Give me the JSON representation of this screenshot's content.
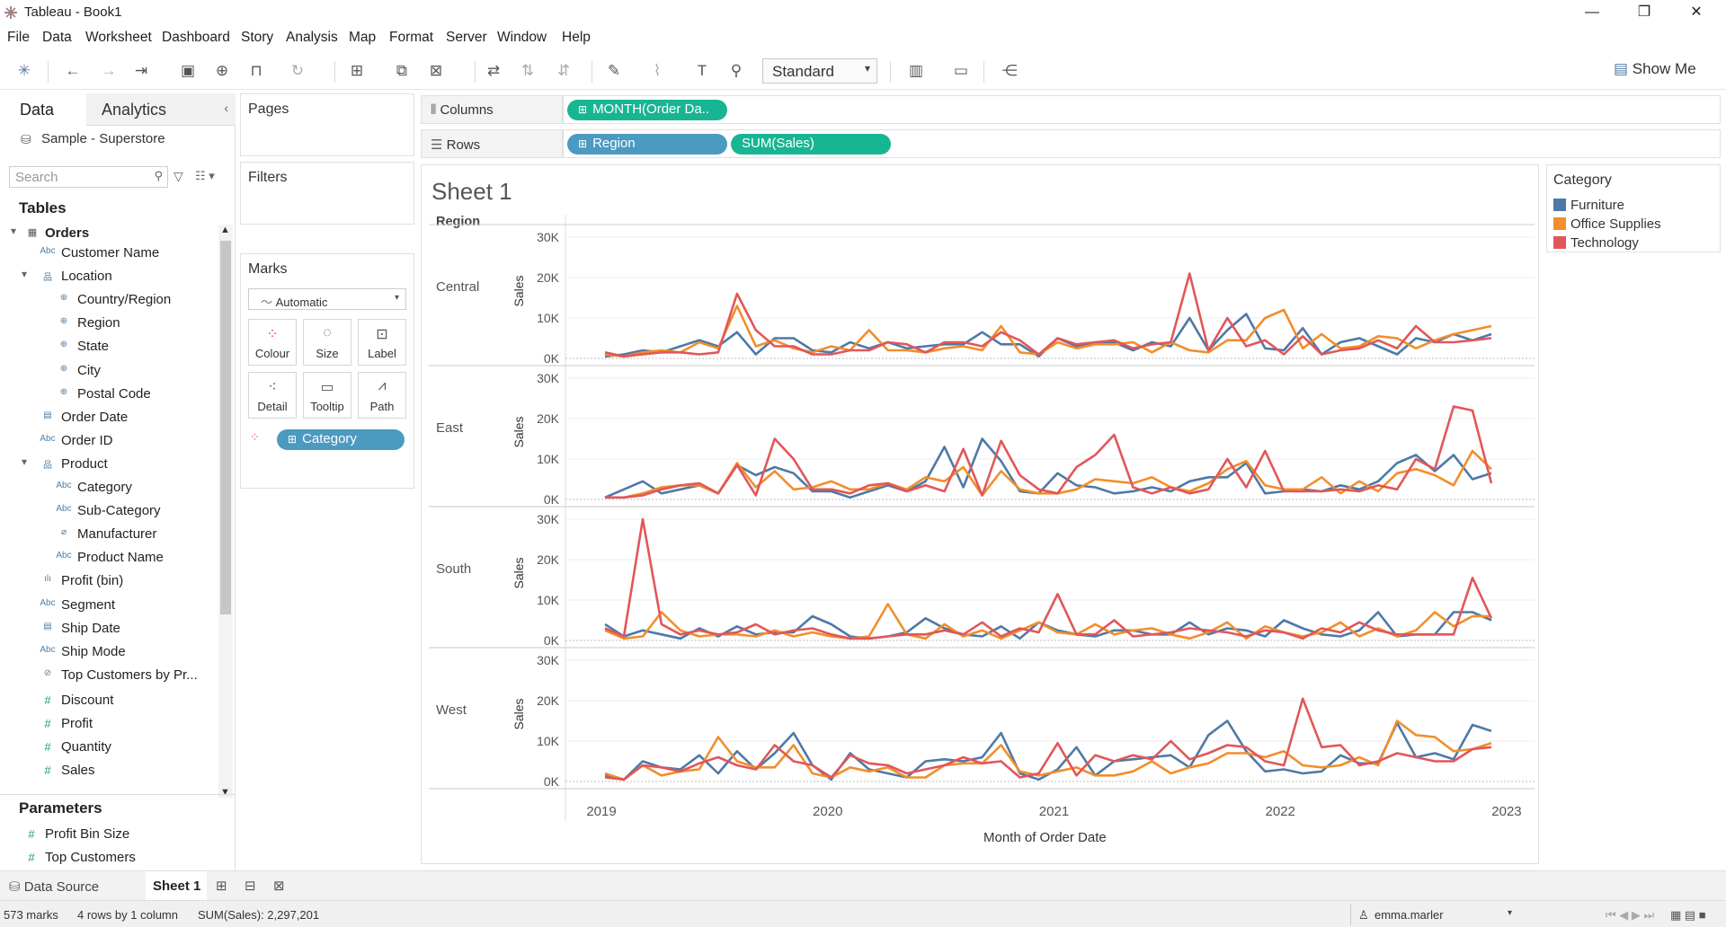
{
  "window": {
    "title": "Tableau - Book1"
  },
  "menu": [
    "File",
    "Data",
    "Worksheet",
    "Dashboard",
    "Story",
    "Analysis",
    "Map",
    "Format",
    "Server",
    "Window",
    "Help"
  ],
  "toolbar": {
    "fit_value": "Standard",
    "show_me": "Show Me"
  },
  "data_pane": {
    "tab_data": "Data",
    "tab_analytics": "Analytics",
    "datasource": "Sample - Superstore",
    "search_placeholder": "Search",
    "tables_heading": "Tables",
    "table_name": "Orders",
    "fields": [
      {
        "label": "Customer Name",
        "type": "Abc",
        "indent": 0
      },
      {
        "label": "Location",
        "type": "hier",
        "indent": 0
      },
      {
        "label": "Country/Region",
        "type": "geo",
        "indent": 1
      },
      {
        "label": "Region",
        "type": "geo",
        "indent": 1
      },
      {
        "label": "State",
        "type": "geo",
        "indent": 1
      },
      {
        "label": "City",
        "type": "geo",
        "indent": 1
      },
      {
        "label": "Postal Code",
        "type": "geo",
        "indent": 1
      },
      {
        "label": "Order Date",
        "type": "date",
        "indent": 0
      },
      {
        "label": "Order ID",
        "type": "Abc",
        "indent": 0
      },
      {
        "label": "Product",
        "type": "hier",
        "indent": 0
      },
      {
        "label": "Category",
        "type": "Abc",
        "indent": 1
      },
      {
        "label": "Sub-Category",
        "type": "Abc",
        "indent": 1
      },
      {
        "label": "Manufacturer",
        "type": "clip",
        "indent": 1
      },
      {
        "label": "Product Name",
        "type": "Abc",
        "indent": 1
      },
      {
        "label": "Profit (bin)",
        "type": "bin",
        "indent": 0
      },
      {
        "label": "Segment",
        "type": "Abc",
        "indent": 0
      },
      {
        "label": "Ship Date",
        "type": "date",
        "indent": 0
      },
      {
        "label": "Ship Mode",
        "type": "Abc",
        "indent": 0
      },
      {
        "label": "Top Customers by Pr...",
        "type": "set",
        "indent": 0
      },
      {
        "label": "Discount",
        "type": "meas",
        "indent": 0
      },
      {
        "label": "Profit",
        "type": "meas",
        "indent": 0
      },
      {
        "label": "Quantity",
        "type": "meas",
        "indent": 0
      },
      {
        "label": "Sales",
        "type": "meas",
        "indent": 0
      }
    ],
    "parameters_heading": "Parameters",
    "parameters": [
      "Profit Bin Size",
      "Top Customers"
    ]
  },
  "cards": {
    "pages": "Pages",
    "filters": "Filters",
    "marks": "Marks",
    "marks_type": "Automatic",
    "mark_buttons": [
      "Colour",
      "Size",
      "Label",
      "Detail",
      "Tooltip",
      "Path"
    ],
    "colour_pill": "Category"
  },
  "shelves": {
    "columns_label": "Columns",
    "rows_label": "Rows",
    "columns_pill": "MONTH(Order Da..",
    "rows_pills": [
      "Region",
      "SUM(Sales)"
    ]
  },
  "sheet": {
    "title": "Sheet 1",
    "region_header": "Region"
  },
  "legend": {
    "title": "Category",
    "items": [
      {
        "name": "Furniture",
        "color": "#4e79a7"
      },
      {
        "name": "Office Supplies",
        "color": "#f28e2b"
      },
      {
        "name": "Technology",
        "color": "#e15759"
      }
    ]
  },
  "chart_data": {
    "type": "line",
    "xlabel": "Month of Order Date",
    "ylabel": "Sales",
    "x_ticks": [
      "2019",
      "2020",
      "2021",
      "2022",
      "2023"
    ],
    "y_ticks": [
      "0K",
      "10K",
      "20K",
      "30K"
    ],
    "ylim": [
      0,
      30000
    ],
    "x": [
      "2019-01",
      "2019-02",
      "2019-03",
      "2019-04",
      "2019-05",
      "2019-06",
      "2019-07",
      "2019-08",
      "2019-09",
      "2019-10",
      "2019-11",
      "2019-12",
      "2020-01",
      "2020-02",
      "2020-03",
      "2020-04",
      "2020-05",
      "2020-06",
      "2020-07",
      "2020-08",
      "2020-09",
      "2020-10",
      "2020-11",
      "2020-12",
      "2021-01",
      "2021-02",
      "2021-03",
      "2021-04",
      "2021-05",
      "2021-06",
      "2021-07",
      "2021-08",
      "2021-09",
      "2021-10",
      "2021-11",
      "2021-12",
      "2022-01",
      "2022-02",
      "2022-03",
      "2022-04",
      "2022-05",
      "2022-06",
      "2022-07",
      "2022-08",
      "2022-09",
      "2022-10",
      "2022-11",
      "2022-12"
    ],
    "panes": [
      {
        "region": "Central",
        "series": [
          {
            "name": "Furniture",
            "values": [
              500,
              1000,
              2000,
              1500,
              3000,
              4500,
              3000,
              6500,
              1000,
              5000,
              5000,
              2000,
              1500,
              4000,
              2500,
              4000,
              2500,
              3000,
              3500,
              3500,
              6500,
              3500,
              3500,
              500,
              5000,
              3000,
              4000,
              4000,
              2000,
              4000,
              3000,
              10000,
              2000,
              7000,
              11000,
              2500,
              2000,
              7500,
              1000,
              4000,
              5000,
              3000,
              1000,
              5000,
              4000,
              6000,
              4500,
              6000
            ]
          },
          {
            "name": "Office Supplies",
            "values": [
              1000,
              500,
              1500,
              2000,
              1500,
              4000,
              2500,
              13000,
              3000,
              4500,
              2500,
              1500,
              3000,
              2000,
              7000,
              2000,
              2000,
              1500,
              2500,
              3000,
              2000,
              8000,
              1500,
              1000,
              4000,
              2500,
              3500,
              3500,
              4000,
              1500,
              4000,
              2000,
              1500,
              4500,
              4500,
              10000,
              12000,
              2500,
              6000,
              2500,
              3000,
              5500,
              5000,
              2500,
              4500,
              6000,
              7000,
              8000
            ]
          },
          {
            "name": "Technology",
            "values": [
              1500,
              500,
              1000,
              1500,
              1500,
              1000,
              1500,
              16000,
              7000,
              3000,
              3000,
              1000,
              1000,
              2000,
              2000,
              4000,
              3500,
              1500,
              4000,
              4000,
              3000,
              6500,
              4500,
              1000,
              5000,
              3500,
              4000,
              4500,
              2500,
              3500,
              4000,
              21000,
              2000,
              10000,
              3000,
              4500,
              1000,
              5500,
              1000,
              2000,
              2500,
              4500,
              2500,
              8000,
              4000,
              4000,
              4500,
              5000
            ]
          }
        ]
      },
      {
        "region": "East",
        "series": [
          {
            "name": "Furniture",
            "values": [
              500,
              2500,
              4500,
              1500,
              2500,
              3500,
              1500,
              8500,
              6000,
              8000,
              6500,
              2000,
              2000,
              500,
              2000,
              3500,
              2000,
              4500,
              13000,
              3000,
              15000,
              9500,
              2000,
              1500,
              6500,
              3500,
              3000,
              1500,
              2000,
              3000,
              2000,
              4500,
              5500,
              5500,
              9000,
              1500,
              2000,
              2500,
              2000,
              3500,
              2500,
              4500,
              9000,
              11000,
              7000,
              11000,
              5000,
              6500
            ]
          },
          {
            "name": "Office Supplies",
            "values": [
              500,
              500,
              1500,
              3000,
              3500,
              3500,
              1500,
              9000,
              3000,
              7000,
              2500,
              3000,
              4500,
              2500,
              2500,
              4000,
              2500,
              5500,
              4500,
              8000,
              1000,
              7000,
              2500,
              1500,
              1500,
              2500,
              5000,
              4500,
              4000,
              5500,
              3000,
              2000,
              4000,
              7500,
              9500,
              3500,
              2500,
              2500,
              5500,
              1500,
              4500,
              2000,
              6500,
              7500,
              6000,
              3500,
              12000,
              7500
            ]
          },
          {
            "name": "Technology",
            "values": [
              500,
              500,
              1000,
              2500,
              3500,
              4000,
              1500,
              8500,
              1000,
              15000,
              10000,
              2500,
              2500,
              1500,
              3500,
              4000,
              2000,
              3500,
              2000,
              12500,
              1000,
              14500,
              6000,
              2500,
              1500,
              8000,
              11000,
              16000,
              3000,
              1500,
              3000,
              1500,
              2500,
              10000,
              3000,
              12000,
              2000,
              2000,
              2000,
              2500,
              2000,
              3500,
              2500,
              10000,
              7500,
              23000,
              22000,
              4000
            ]
          }
        ]
      },
      {
        "region": "South",
        "series": [
          {
            "name": "Furniture",
            "values": [
              4000,
              1000,
              2500,
              1500,
              500,
              3000,
              1000,
              3500,
              1500,
              2000,
              2000,
              6000,
              4000,
              1000,
              500,
              1000,
              2000,
              5500,
              3000,
              1500,
              1000,
              3500,
              500,
              4500,
              2500,
              1500,
              1000,
              2500,
              2500,
              1500,
              1500,
              4500,
              1500,
              3000,
              2500,
              1000,
              5000,
              3000,
              1500,
              1000,
              2500,
              7000,
              1000,
              1500,
              1500,
              7000,
              7000,
              5000
            ]
          },
          {
            "name": "Office Supplies",
            "values": [
              2500,
              500,
              1000,
              7000,
              2500,
              1000,
              1500,
              1500,
              1000,
              2500,
              1000,
              2000,
              1000,
              500,
              1000,
              9000,
              1500,
              500,
              4000,
              1000,
              2500,
              500,
              2500,
              4500,
              2000,
              1500,
              4000,
              1500,
              2500,
              3000,
              1500,
              500,
              2000,
              4500,
              500,
              3500,
              2000,
              1000,
              2000,
              4500,
              1000,
              3000,
              1000,
              2500,
              7000,
              3500,
              6000,
              6000
            ]
          },
          {
            "name": "Technology",
            "values": [
              3000,
              1000,
              30000,
              4000,
              1500,
              2500,
              1500,
              2000,
              4000,
              1500,
              2500,
              3000,
              1500,
              500,
              500,
              1000,
              1500,
              1500,
              2500,
              1500,
              4500,
              1000,
              3000,
              2000,
              11500,
              1500,
              1500,
              5000,
              1000,
              1500,
              2000,
              3000,
              2500,
              2000,
              1000,
              2500,
              2000,
              500,
              3000,
              2000,
              4500,
              2500,
              1500,
              1500,
              1500,
              1500,
              15500,
              5500
            ]
          }
        ]
      },
      {
        "region": "West",
        "series": [
          {
            "name": "Furniture",
            "values": [
              1500,
              500,
              5000,
              3500,
              3000,
              6500,
              2000,
              7500,
              3000,
              7000,
              12000,
              4000,
              500,
              7000,
              3000,
              2000,
              1000,
              5000,
              5500,
              5000,
              6000,
              12000,
              2000,
              500,
              3000,
              8500,
              1500,
              5000,
              5500,
              6000,
              6500,
              3500,
              11500,
              15000,
              7500,
              2500,
              3000,
              2000,
              2500,
              6500,
              4500,
              4500,
              14500,
              6000,
              7000,
              5500,
              14000,
              12500
            ]
          },
          {
            "name": "Office Supplies",
            "values": [
              2000,
              500,
              4000,
              1500,
              2500,
              3000,
              11000,
              5000,
              3500,
              3500,
              9000,
              2000,
              1000,
              3500,
              2500,
              3500,
              1000,
              1000,
              4000,
              4500,
              4500,
              9000,
              2500,
              1500,
              2500,
              3500,
              1500,
              1500,
              2500,
              5000,
              2000,
              3500,
              4500,
              7000,
              7000,
              6000,
              7500,
              4000,
              3500,
              4000,
              6000,
              4000,
              15000,
              11500,
              11000,
              7500,
              8000,
              9500
            ]
          },
          {
            "name": "Technology",
            "values": [
              1000,
              500,
              4000,
              3500,
              2500,
              4500,
              6000,
              4000,
              3000,
              9000,
              5000,
              4000,
              1000,
              6500,
              4500,
              4000,
              2000,
              3000,
              4000,
              6000,
              4500,
              5000,
              1000,
              2000,
              9500,
              1500,
              6500,
              5000,
              6500,
              5500,
              10000,
              5500,
              7000,
              9000,
              8500,
              5000,
              4000,
              20500,
              8500,
              9000,
              4000,
              5000,
              7000,
              6000,
              5000,
              5000,
              8000,
              8500
            ]
          }
        ]
      }
    ]
  },
  "tabs": {
    "data_source": "Data Source",
    "sheet1": "Sheet 1"
  },
  "status": {
    "marks": "573 marks",
    "rows": "4 rows by 1 column",
    "sum": "SUM(Sales): 2,297,201",
    "user": "emma.marler"
  }
}
